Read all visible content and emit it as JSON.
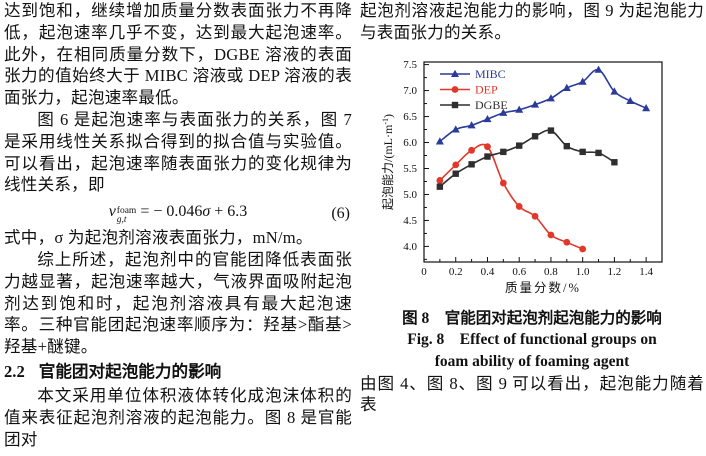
{
  "left_column": {
    "para1": "达到饱和，继续增加质量分数表面张力不再降低，起泡速率几乎不变，达到最大起泡速率。此外，在相同质量分数下，DGBE 溶液的表面张力的值始终大于 MIBC 溶液或 DEP 溶液的表面张力，起泡速率最低。",
    "para2": "图 6 是起泡速率与表面张力的关系，图 7 是采用线性关系拟合得到的拟合值与实验值。可以看出，起泡速率随表面张力的变化规律为线性关系，即",
    "equation": {
      "v": "v",
      "sup": "foam",
      "sub": "g,t",
      "mid": "= − 0.046",
      "sigma": "σ",
      "tail": " + 6.3",
      "num": "(6)"
    },
    "para3": "式中，σ 为起泡剂溶液表面张力，mN/m。",
    "para4": "综上所述，起泡剂中的官能团降低表面张力越显著，起泡速率越大，气液界面吸附起泡剂达到饱和时，起泡剂溶液具有最大起泡速率。三种官能团起泡速率顺序为：羟基>酯基>羟基+醚键。",
    "heading": {
      "number": "2.2",
      "title": "官能团对起泡能力的影响"
    },
    "para5": "本文采用单位体积液体转化成泡沫体积的值来表征起泡剂溶液的起泡能力。图 8 是官能团对"
  },
  "right_column": {
    "para1": "起泡剂溶液起泡能力的影响，图 9 为起泡能力与表面张力的关系。",
    "figure": {
      "caption_zh": "图 8　官能团对起泡剂起泡能力的影响",
      "caption_en_line1": "Fig. 8　Effect of functional groups on",
      "caption_en_line2": "foam ability of foaming agent"
    },
    "para2": "由图 4、图 8、图 9 可以看出，起泡能力随着表"
  },
  "chart_data": {
    "type": "line",
    "title": "",
    "xlabel": "质量分数/%",
    "ylabel_main": "起泡能力/(mL·m",
    "ylabel_sup": "-1",
    "ylabel_end": ")",
    "xlim": [
      0,
      1.5
    ],
    "ylim": [
      3.7,
      7.55
    ],
    "xticks": [
      0,
      0.2,
      0.4,
      0.6,
      0.8,
      1.0,
      1.2,
      1.4
    ],
    "yticks": [
      4.0,
      4.5,
      5.0,
      5.5,
      6.0,
      6.5,
      7.0,
      7.5
    ],
    "x_minor_step": 0.1,
    "y_minor_step": 0.25,
    "grid": false,
    "legend_position": "top-left",
    "series": [
      {
        "name": "MIBC",
        "color": "#2a3b9a",
        "marker": "triangle",
        "x": [
          0.1,
          0.2,
          0.3,
          0.4,
          0.5,
          0.6,
          0.7,
          0.8,
          0.9,
          1.0,
          1.1,
          1.2,
          1.3,
          1.4
        ],
        "y": [
          6.02,
          6.25,
          6.33,
          6.45,
          6.57,
          6.63,
          6.73,
          6.85,
          7.05,
          7.17,
          7.4,
          6.98,
          6.8,
          6.66
        ]
      },
      {
        "name": "DEP",
        "color": "#e2382b",
        "marker": "circle",
        "x": [
          0.1,
          0.2,
          0.3,
          0.4,
          0.5,
          0.6,
          0.7,
          0.8,
          0.9,
          1.0
        ],
        "y": [
          5.27,
          5.57,
          5.85,
          5.92,
          5.22,
          4.77,
          4.58,
          4.22,
          4.08,
          3.95
        ]
      },
      {
        "name": "DGBE",
        "color": "#2f2f2f",
        "marker": "square",
        "x": [
          0.1,
          0.2,
          0.3,
          0.4,
          0.5,
          0.6,
          0.7,
          0.8,
          0.9,
          1.0,
          1.1,
          1.2
        ],
        "y": [
          5.15,
          5.4,
          5.58,
          5.73,
          5.82,
          5.94,
          6.12,
          6.23,
          5.93,
          5.82,
          5.8,
          5.62
        ]
      }
    ]
  }
}
